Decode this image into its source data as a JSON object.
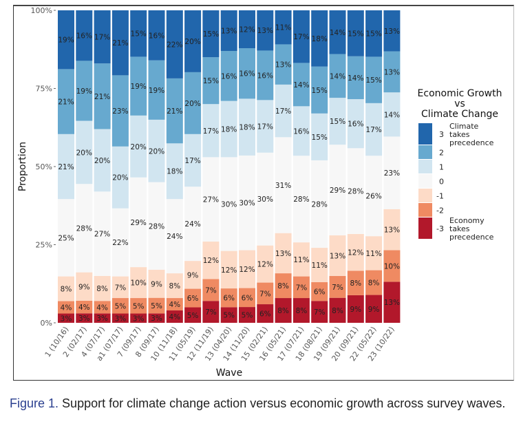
{
  "chart_data": {
    "type": "bar",
    "stacked": true,
    "normalized": true,
    "xlabel": "Wave",
    "ylabel": "Proportion",
    "ylim": [
      0,
      1
    ],
    "yticks": [
      {
        "value": 0,
        "label": "0%"
      },
      {
        "value": 0.25,
        "label": "25%"
      },
      {
        "value": 0.5,
        "label": "50%"
      },
      {
        "value": 0.75,
        "label": "75%"
      },
      {
        "value": 1,
        "label": "100%"
      }
    ],
    "grid": false,
    "legend_position": "right",
    "categories": [
      "1 (10/16)",
      "2 (02/17)",
      "4 (07/17)",
      "a1 (07/17)",
      "7 (09/17)",
      "8 (09/17)",
      "10 (11/18)",
      "11 (05/19)",
      "12 (11/19)",
      "13 (04/20)",
      "14 (11/20)",
      "15 (02/21)",
      "16 (05/21)",
      "17 (07/21)",
      "18 (08/21)",
      "19 (09/21)",
      "20 (09/21)",
      "22 (05/22)",
      "23 (10/22)"
    ],
    "series": [
      {
        "name": "-3",
        "color": "#b2182b",
        "values": [
          3,
          3,
          3,
          3,
          3,
          3,
          4,
          5,
          7,
          5,
          5,
          6,
          8,
          8,
          7,
          8,
          9,
          9,
          13
        ]
      },
      {
        "name": "-2",
        "color": "#ef8a62",
        "values": [
          4,
          4,
          4,
          5,
          5,
          5,
          4,
          6,
          7,
          6,
          6,
          7,
          8,
          7,
          6,
          7,
          8,
          8,
          10
        ]
      },
      {
        "name": "-1",
        "color": "#fddbc7",
        "values": [
          8,
          9,
          8,
          7,
          10,
          9,
          8,
          9,
          12,
          12,
          12,
          12,
          13,
          11,
          11,
          13,
          12,
          11,
          13
        ]
      },
      {
        "name": "0",
        "color": "#f7f7f7",
        "values": [
          25,
          28,
          27,
          22,
          29,
          28,
          24,
          24,
          27,
          30,
          30,
          30,
          31,
          28,
          28,
          29,
          28,
          26,
          23
        ]
      },
      {
        "name": "1",
        "color": "#d1e5f0",
        "values": [
          21,
          20,
          20,
          20,
          20,
          20,
          18,
          17,
          17,
          18,
          18,
          17,
          17,
          16,
          15,
          15,
          16,
          17,
          14
        ]
      },
      {
        "name": "2",
        "color": "#67a9cf",
        "values": [
          21,
          19,
          21,
          23,
          19,
          19,
          21,
          20,
          15,
          16,
          16,
          16,
          13,
          14,
          15,
          14,
          14,
          15,
          13
        ]
      },
      {
        "name": "3",
        "color": "#2166ac",
        "values": [
          19,
          16,
          17,
          21,
          15,
          16,
          22,
          20,
          15,
          13,
          12,
          13,
          11,
          17,
          18,
          14,
          15,
          15,
          13
        ]
      }
    ],
    "legend": {
      "title_lines": [
        "Economic Growth",
        "vs",
        "Climate Change"
      ],
      "entries": [
        {
          "key": "3",
          "label_lines": [
            "Climate",
            "takes",
            "precedence"
          ],
          "color": "#2166ac"
        },
        {
          "key": "2",
          "label_lines": [],
          "color": "#67a9cf"
        },
        {
          "key": "1",
          "label_lines": [],
          "color": "#d1e5f0"
        },
        {
          "key": "0",
          "label_lines": [],
          "color": "#f7f7f7"
        },
        {
          "key": "-1",
          "label_lines": [],
          "color": "#fddbc7"
        },
        {
          "key": "-2",
          "label_lines": [],
          "color": "#ef8a62"
        },
        {
          "key": "-3",
          "label_lines": [
            "Economy",
            "takes",
            "precedence"
          ],
          "color": "#b2182b"
        }
      ]
    }
  },
  "caption": {
    "label": "Figure 1.",
    "text": " Support for climate change action versus economic growth across survey waves."
  }
}
